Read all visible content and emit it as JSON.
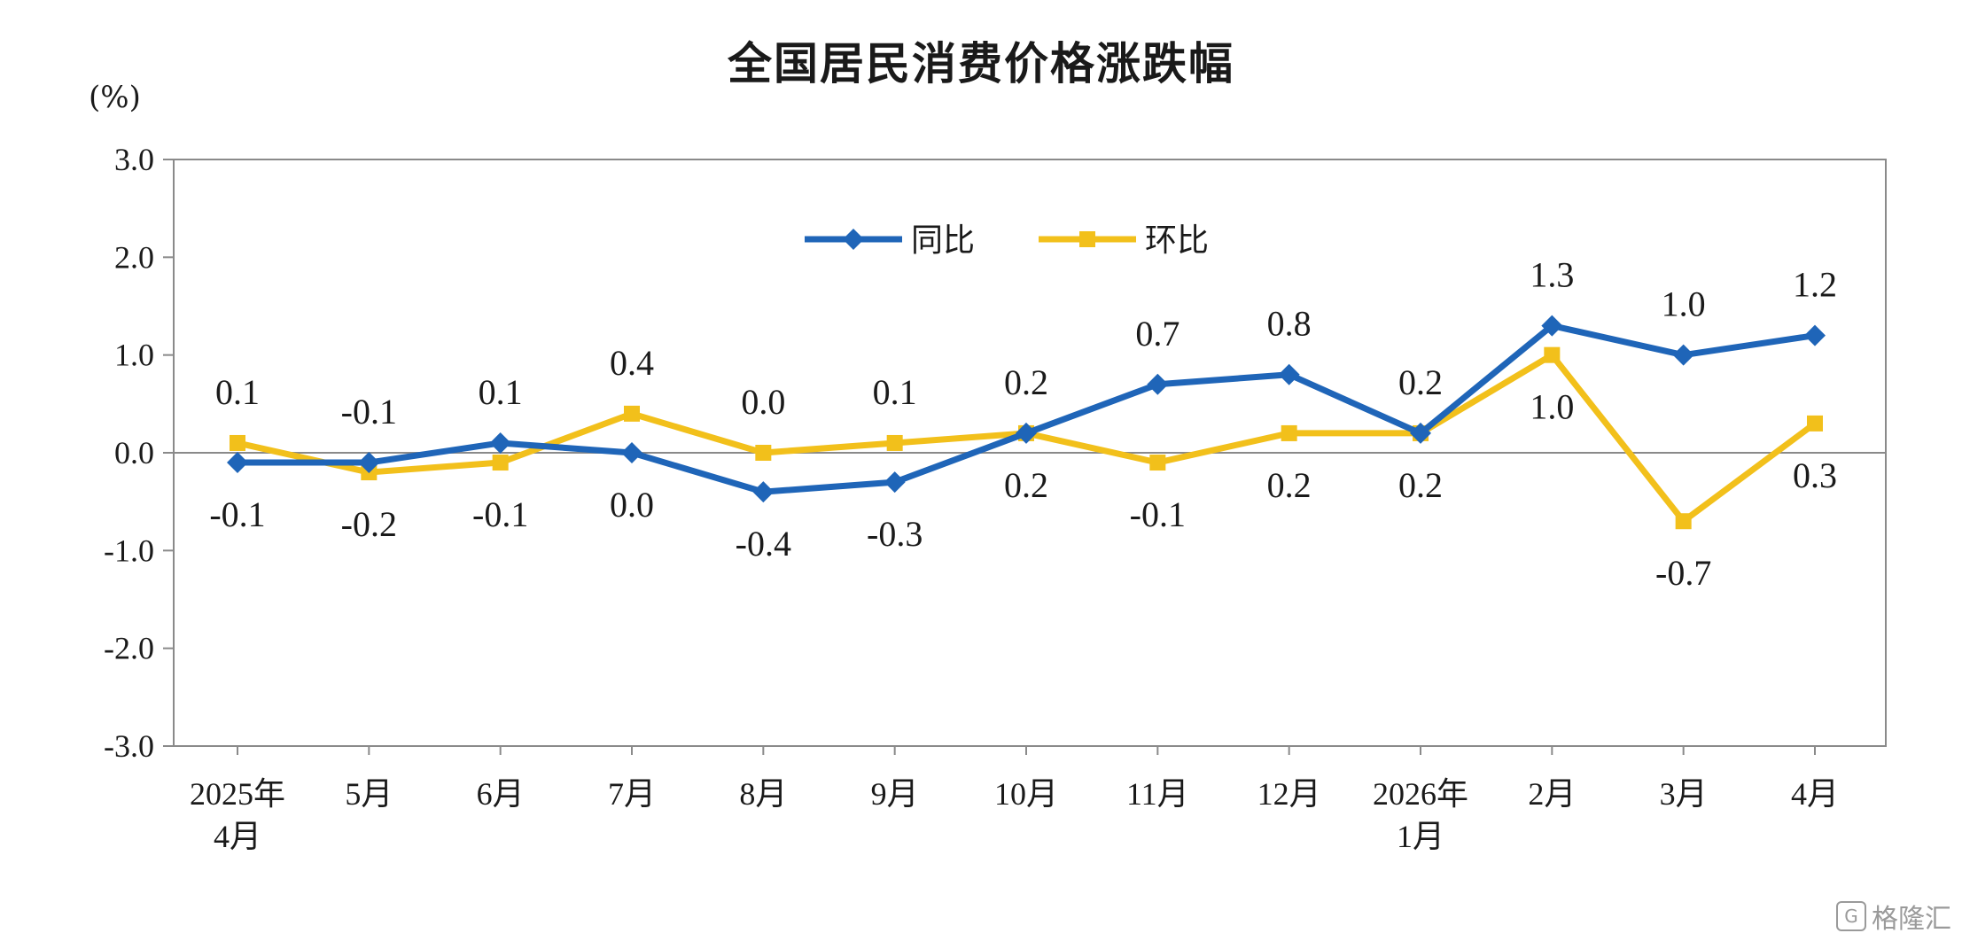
{
  "watermark": "格隆汇",
  "chart_data": {
    "type": "line",
    "title": "全国居民消费价格涨跌幅",
    "ylabel": "(%)",
    "xlabel": "",
    "ylim": [
      -3.0,
      3.0
    ],
    "yticks": [
      "3.0",
      "2.0",
      "1.0",
      "0.0",
      "-1.0",
      "-2.0",
      "-3.0"
    ],
    "categories": [
      [
        "2025年",
        "4月"
      ],
      [
        "5月"
      ],
      [
        "6月"
      ],
      [
        "7月"
      ],
      [
        "8月"
      ],
      [
        "9月"
      ],
      [
        "10月"
      ],
      [
        "11月"
      ],
      [
        "12月"
      ],
      [
        "2026年",
        "1月"
      ],
      [
        "2月"
      ],
      [
        "3月"
      ],
      [
        "4月"
      ]
    ],
    "legend_position": "top-center",
    "grid": false,
    "series": [
      {
        "name": "同比",
        "color": "#1f65b8",
        "marker": "diamond",
        "values": [
          -0.1,
          -0.1,
          0.1,
          0.0,
          -0.4,
          -0.3,
          0.2,
          0.7,
          0.8,
          0.2,
          1.3,
          1.0,
          1.2
        ],
        "labels": [
          "-0.1",
          "-0.1",
          "0.1",
          "0.0",
          "-0.4",
          "-0.3",
          "0.2",
          "0.7",
          "0.8",
          "0.2",
          "1.3",
          "1.0",
          "1.2"
        ],
        "label_side": [
          "below",
          "above",
          "above",
          "below",
          "below",
          "below",
          "above",
          "above",
          "above",
          "above",
          "above",
          "above",
          "above"
        ]
      },
      {
        "name": "环比",
        "color": "#f2c01b",
        "marker": "square",
        "values": [
          0.1,
          -0.2,
          -0.1,
          0.4,
          0.0,
          0.1,
          0.2,
          -0.1,
          0.2,
          0.2,
          1.0,
          -0.7,
          0.3
        ],
        "labels": [
          "0.1",
          "-0.2",
          "-0.1",
          "0.4",
          "0.0",
          "0.1",
          "0.2",
          "-0.1",
          "0.2",
          "0.2",
          "1.0",
          "-0.7",
          "0.3"
        ],
        "label_side": [
          "above",
          "below",
          "below",
          "above",
          "above",
          "above",
          "below",
          "below",
          "below",
          "below",
          "below",
          "below",
          "below"
        ]
      }
    ]
  }
}
